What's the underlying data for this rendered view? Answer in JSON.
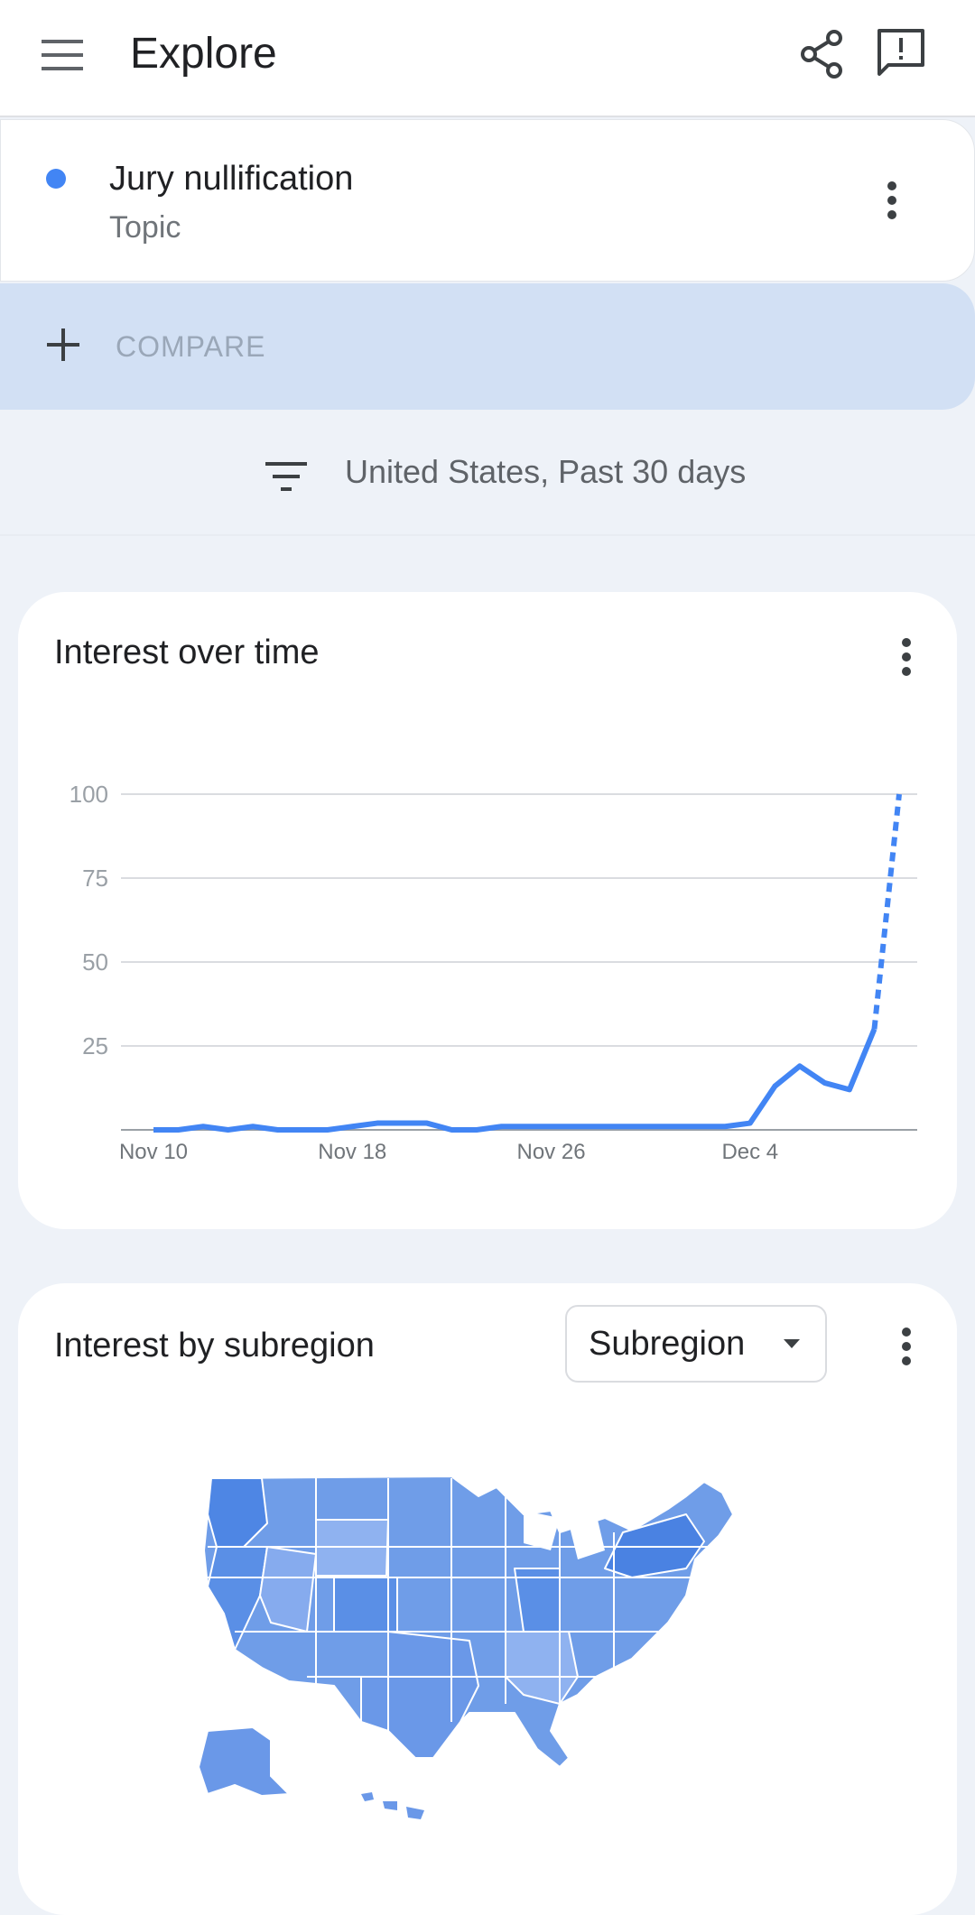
{
  "appbar": {
    "title": "Explore",
    "icons": [
      "menu-icon",
      "share-icon",
      "feedback-icon"
    ]
  },
  "term": {
    "name": "Jury nullification",
    "type": "Topic",
    "color": "#4285f4"
  },
  "compare": {
    "label": "COMPARE"
  },
  "filter": {
    "text": "United States, Past 30 days"
  },
  "interest_over_time": {
    "title": "Interest over time"
  },
  "interest_by_subregion": {
    "title": "Interest by subregion",
    "select_value": "Subregion"
  },
  "chart_data": {
    "type": "line",
    "xlabel": "",
    "ylabel": "",
    "ylim": [
      0,
      100
    ],
    "yticks": [
      25,
      50,
      75,
      100
    ],
    "xticks": [
      "Nov 10",
      "Nov 18",
      "Nov 26",
      "Dec 4"
    ],
    "xtick_indices": [
      0,
      8,
      16,
      24
    ],
    "grid": true,
    "series": [
      {
        "values": [
          0,
          0,
          1,
          0,
          1,
          0,
          0,
          0,
          1,
          2,
          2,
          2,
          0,
          0,
          1,
          1,
          1,
          1,
          1,
          1,
          1,
          1,
          1,
          1,
          2,
          13,
          19,
          14,
          12,
          30,
          100
        ],
        "color": "#4285f4",
        "partial_from_index": 29
      }
    ]
  }
}
